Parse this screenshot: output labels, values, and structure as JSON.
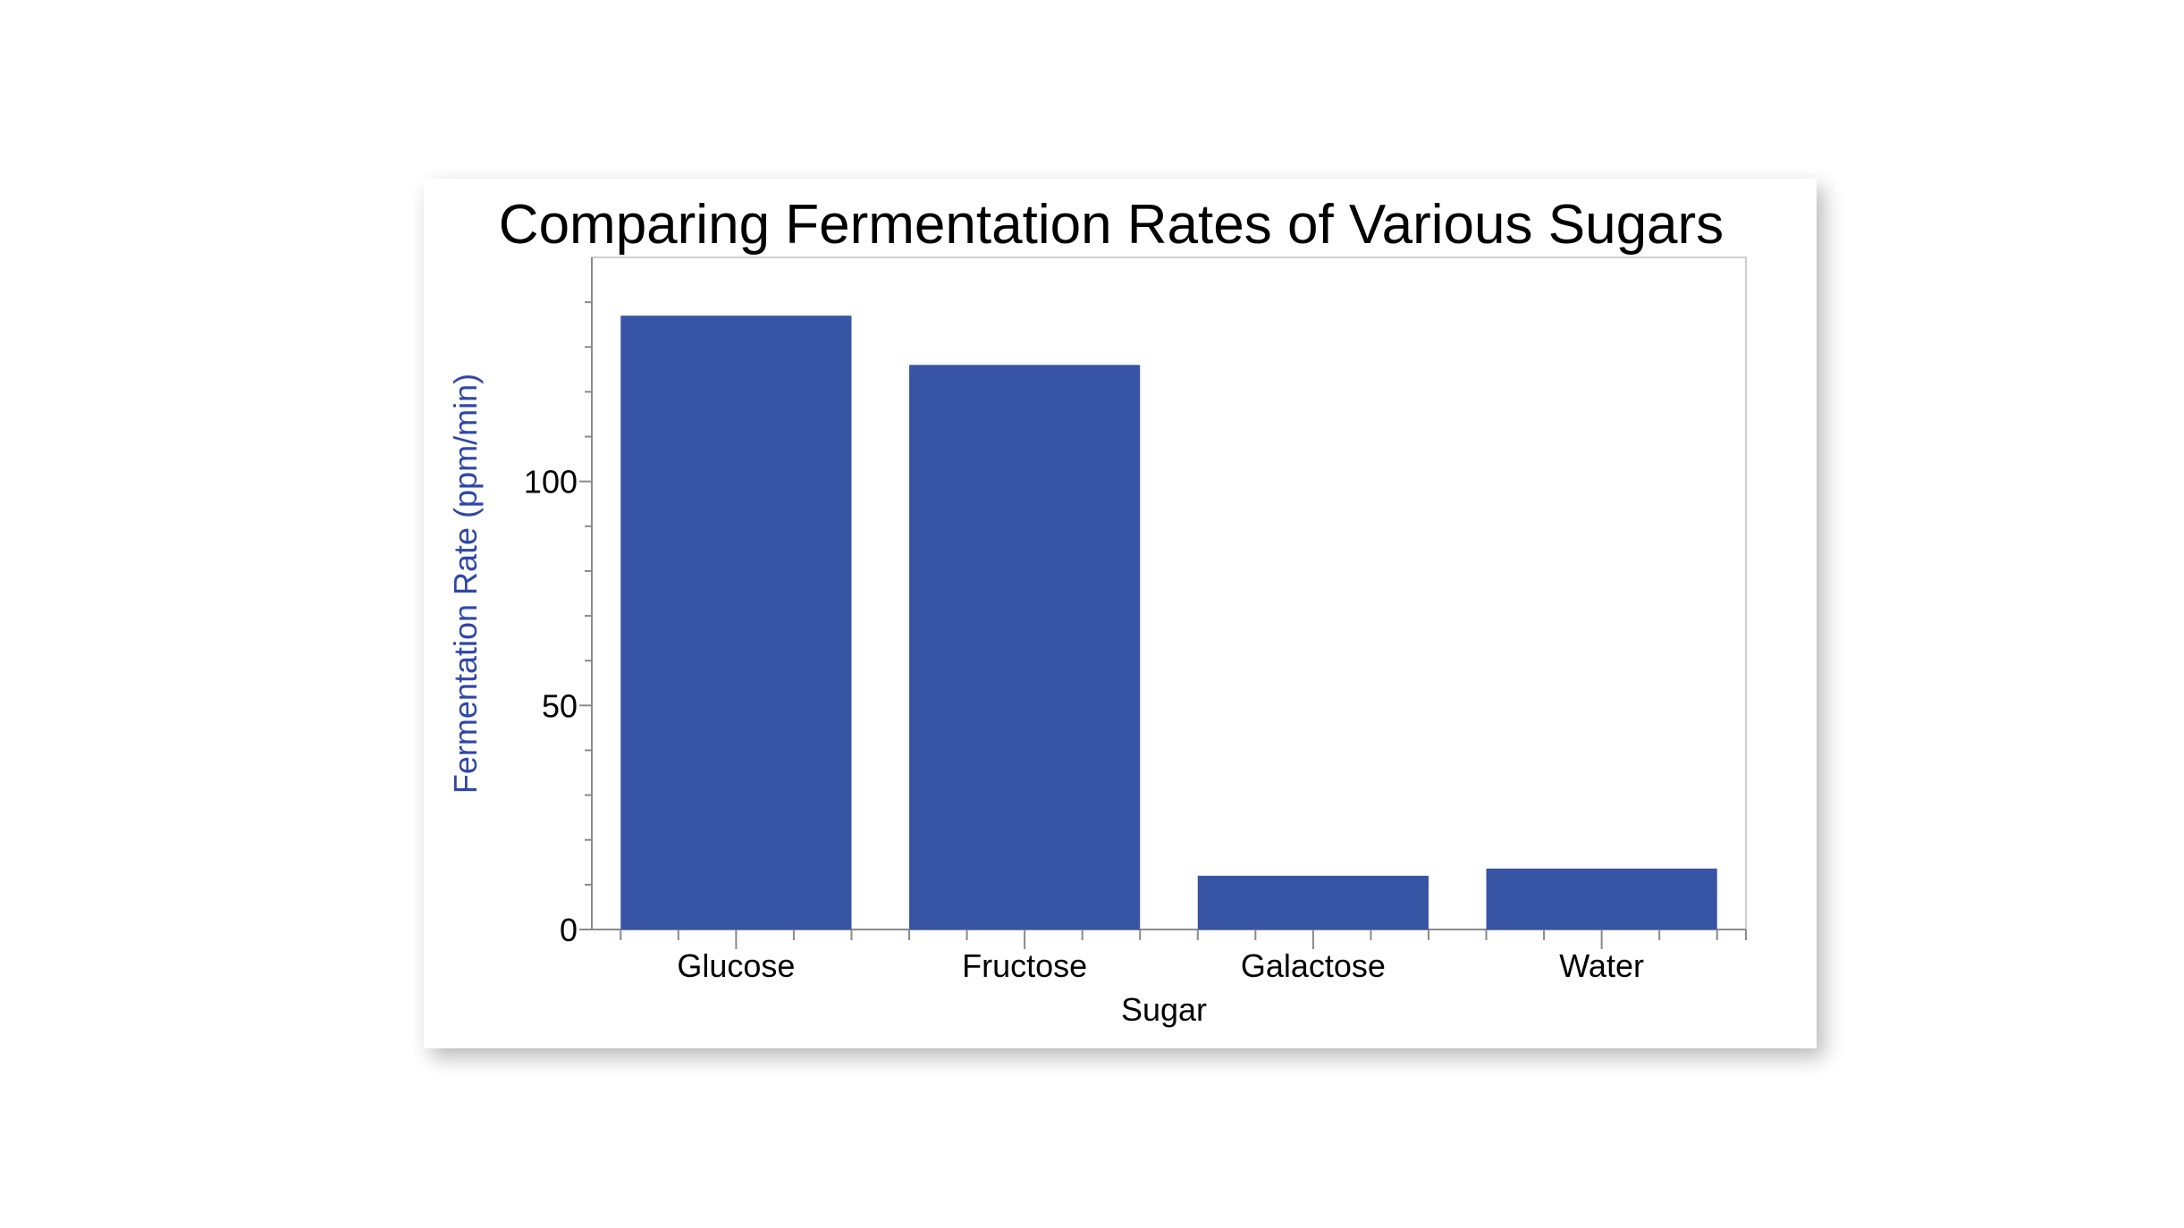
{
  "chart_data": {
    "type": "bar",
    "title": "Comparing Fermentation Rates of Various Sugars",
    "xlabel": "Sugar",
    "ylabel": "Fermentation Rate (ppm/min)",
    "categories": [
      "Glucose",
      "Fructose",
      "Galactose",
      "Water"
    ],
    "values": [
      137,
      126,
      12,
      13.6
    ],
    "ylim": [
      0,
      150
    ],
    "yticks": [
      0,
      50,
      100
    ],
    "yminor_step": 10,
    "grid": false,
    "legend": "none",
    "colors": {
      "bar": "#3854A4",
      "ylabel": "#2E47A8",
      "axis": "#8a8a8a"
    }
  }
}
